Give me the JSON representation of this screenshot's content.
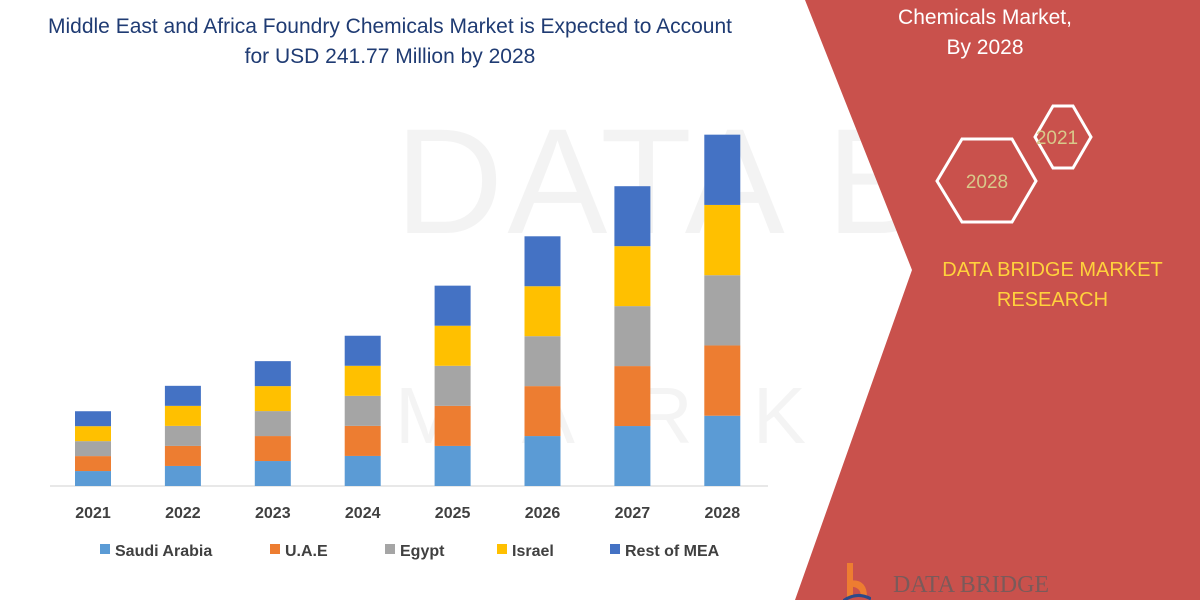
{
  "header": {
    "title": "Middle East and Africa Foundry Chemicals Market is Expected to Account for USD 241.77 Million by 2028"
  },
  "panel": {
    "line1": "Chemicals Market,",
    "line2": "By 2028",
    "hex_top": "2021",
    "hex_bottom": "2028",
    "brand": "DATA BRIDGE MARKET RESEARCH",
    "logo_text": "DATA BRIDGE",
    "watermark": "DATA BRIDGE MARKET RESEARCH"
  },
  "colors": {
    "panel": "#c9514c",
    "title": "#1f3b73",
    "brand": "#ffd23c"
  },
  "chart_data": {
    "type": "bar",
    "stacked": true,
    "title": "",
    "xlabel": "",
    "ylabel": "",
    "categories": [
      "2021",
      "2022",
      "2023",
      "2024",
      "2025",
      "2026",
      "2027",
      "2028"
    ],
    "series": [
      {
        "name": "Saudi Arabia",
        "color": "#5b9bd5",
        "values": [
          10.3,
          13.8,
          17.2,
          20.7,
          27.6,
          34.4,
          41.3,
          48.4
        ]
      },
      {
        "name": "U.A.E",
        "color": "#ed7d31",
        "values": [
          10.3,
          13.8,
          17.2,
          20.7,
          27.6,
          34.4,
          41.3,
          48.4
        ]
      },
      {
        "name": "Egypt",
        "color": "#a5a5a5",
        "values": [
          10.3,
          13.8,
          17.2,
          20.7,
          27.6,
          34.4,
          41.3,
          48.4
        ]
      },
      {
        "name": "Israel",
        "color": "#ffc000",
        "values": [
          10.3,
          13.8,
          17.2,
          20.7,
          27.6,
          34.4,
          41.3,
          48.4
        ]
      },
      {
        "name": "Rest of MEA",
        "color": "#4472c4",
        "values": [
          10.3,
          13.8,
          17.2,
          20.7,
          27.6,
          34.4,
          41.3,
          48.4
        ]
      }
    ],
    "grid": false,
    "legend": "bottom"
  }
}
